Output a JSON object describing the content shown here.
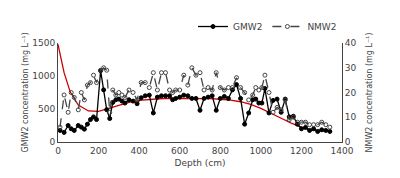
{
  "chart_data": {
    "type": "line",
    "xlabel": "Depth (cm)",
    "ylabel": "GMW2 concentration (mg L⁻¹)",
    "y2label": "NMW2 concentration (mg L⁻¹)",
    "xlim": [
      0,
      1400
    ],
    "xticks": [
      0,
      200,
      400,
      600,
      800,
      1000,
      1200,
      1400
    ],
    "ylim": [
      0,
      1500
    ],
    "yticks": [
      0,
      500,
      1000,
      1500
    ],
    "y2lim": [
      0,
      40
    ],
    "y2ticks": [
      0,
      10,
      20,
      30,
      40
    ],
    "grid": false,
    "legend": "upper right",
    "series": [
      {
        "color": "#cc0000",
        "line_style": "solid",
        "x": [
          0,
          30,
          60,
          100,
          150,
          200,
          250,
          300,
          350,
          400,
          450,
          500,
          550,
          600,
          650,
          700,
          750,
          800,
          850,
          900,
          950,
          1000,
          1050,
          1100,
          1150,
          1200,
          1250,
          1300,
          1350
        ],
        "values": [
          1480,
          1050,
          760,
          560,
          470,
          465,
          510,
          560,
          600,
          630,
          645,
          655,
          660,
          660,
          658,
          658,
          656,
          648,
          635,
          610,
          570,
          510,
          440,
          360,
          285,
          225,
          185,
          165,
          155
        ]
      },
      {
        "name": "GMW2",
        "color": "#000000",
        "line_style": "solid",
        "marker": "circle",
        "x": [
          10,
          30,
          50,
          65,
          80,
          100,
          115,
          130,
          145,
          160,
          175,
          190,
          210,
          225,
          240,
          255,
          270,
          285,
          300,
          315,
          330,
          350,
          370,
          390,
          410,
          430,
          450,
          470,
          490,
          510,
          530,
          550,
          565,
          580,
          600,
          620,
          640,
          660,
          680,
          700,
          720,
          740,
          760,
          780,
          800,
          820,
          840,
          860,
          880,
          900,
          920,
          940,
          960,
          975,
          990,
          1005,
          1020,
          1040,
          1060,
          1080,
          1100,
          1120,
          1140,
          1160,
          1180,
          1200,
          1220,
          1240,
          1260,
          1280,
          1300,
          1320,
          1340
        ],
        "values": [
          175,
          145,
          250,
          200,
          175,
          250,
          225,
          195,
          270,
          340,
          380,
          340,
          1080,
          790,
          490,
          355,
          600,
          640,
          650,
          620,
          590,
          640,
          620,
          580,
          670,
          700,
          710,
          440,
          680,
          700,
          700,
          700,
          640,
          660,
          680,
          710,
          700,
          660,
          660,
          480,
          660,
          680,
          700,
          480,
          660,
          690,
          660,
          790,
          870,
          660,
          270,
          440,
          640,
          650,
          590,
          590,
          810,
          440,
          630,
          650,
          450,
          650,
          380,
          390,
          270,
          200,
          220,
          175,
          200,
          160,
          185,
          175,
          160
        ]
      },
      {
        "name": "NMW2",
        "color": "#444444",
        "line_style": "dashed",
        "marker": "circle-open",
        "axis": "y2",
        "x": [
          10,
          30,
          50,
          65,
          80,
          100,
          115,
          130,
          145,
          160,
          175,
          190,
          210,
          225,
          240,
          255,
          270,
          285,
          300,
          315,
          330,
          350,
          370,
          390,
          410,
          430,
          450,
          470,
          490,
          510,
          530,
          550,
          565,
          580,
          600,
          620,
          640,
          660,
          680,
          700,
          720,
          740,
          760,
          780,
          800,
          820,
          840,
          860,
          880,
          900,
          920,
          940,
          960,
          975,
          990,
          1005,
          1020,
          1040,
          1060,
          1080,
          1100,
          1120,
          1140,
          1160,
          1180,
          1200,
          1220,
          1240,
          1260,
          1280,
          1300,
          1320,
          1340
        ],
        "values": [
          6,
          19,
          12,
          20,
          18,
          13,
          20,
          17,
          23,
          24,
          27,
          24,
          29,
          30,
          29,
          12,
          21,
          19,
          20,
          19,
          18,
          21,
          20,
          17,
          24,
          24,
          22,
          28,
          21,
          28,
          28,
          21,
          20,
          21,
          21,
          27,
          23,
          30,
          27,
          28,
          21,
          22,
          21,
          28,
          22,
          21,
          22,
          22,
          26,
          22,
          20,
          17,
          19,
          22,
          21,
          22,
          27,
          20,
          12,
          14,
          13,
          17,
          9,
          10,
          8,
          8,
          8,
          7,
          7,
          7,
          8,
          7,
          6
        ]
      }
    ]
  }
}
